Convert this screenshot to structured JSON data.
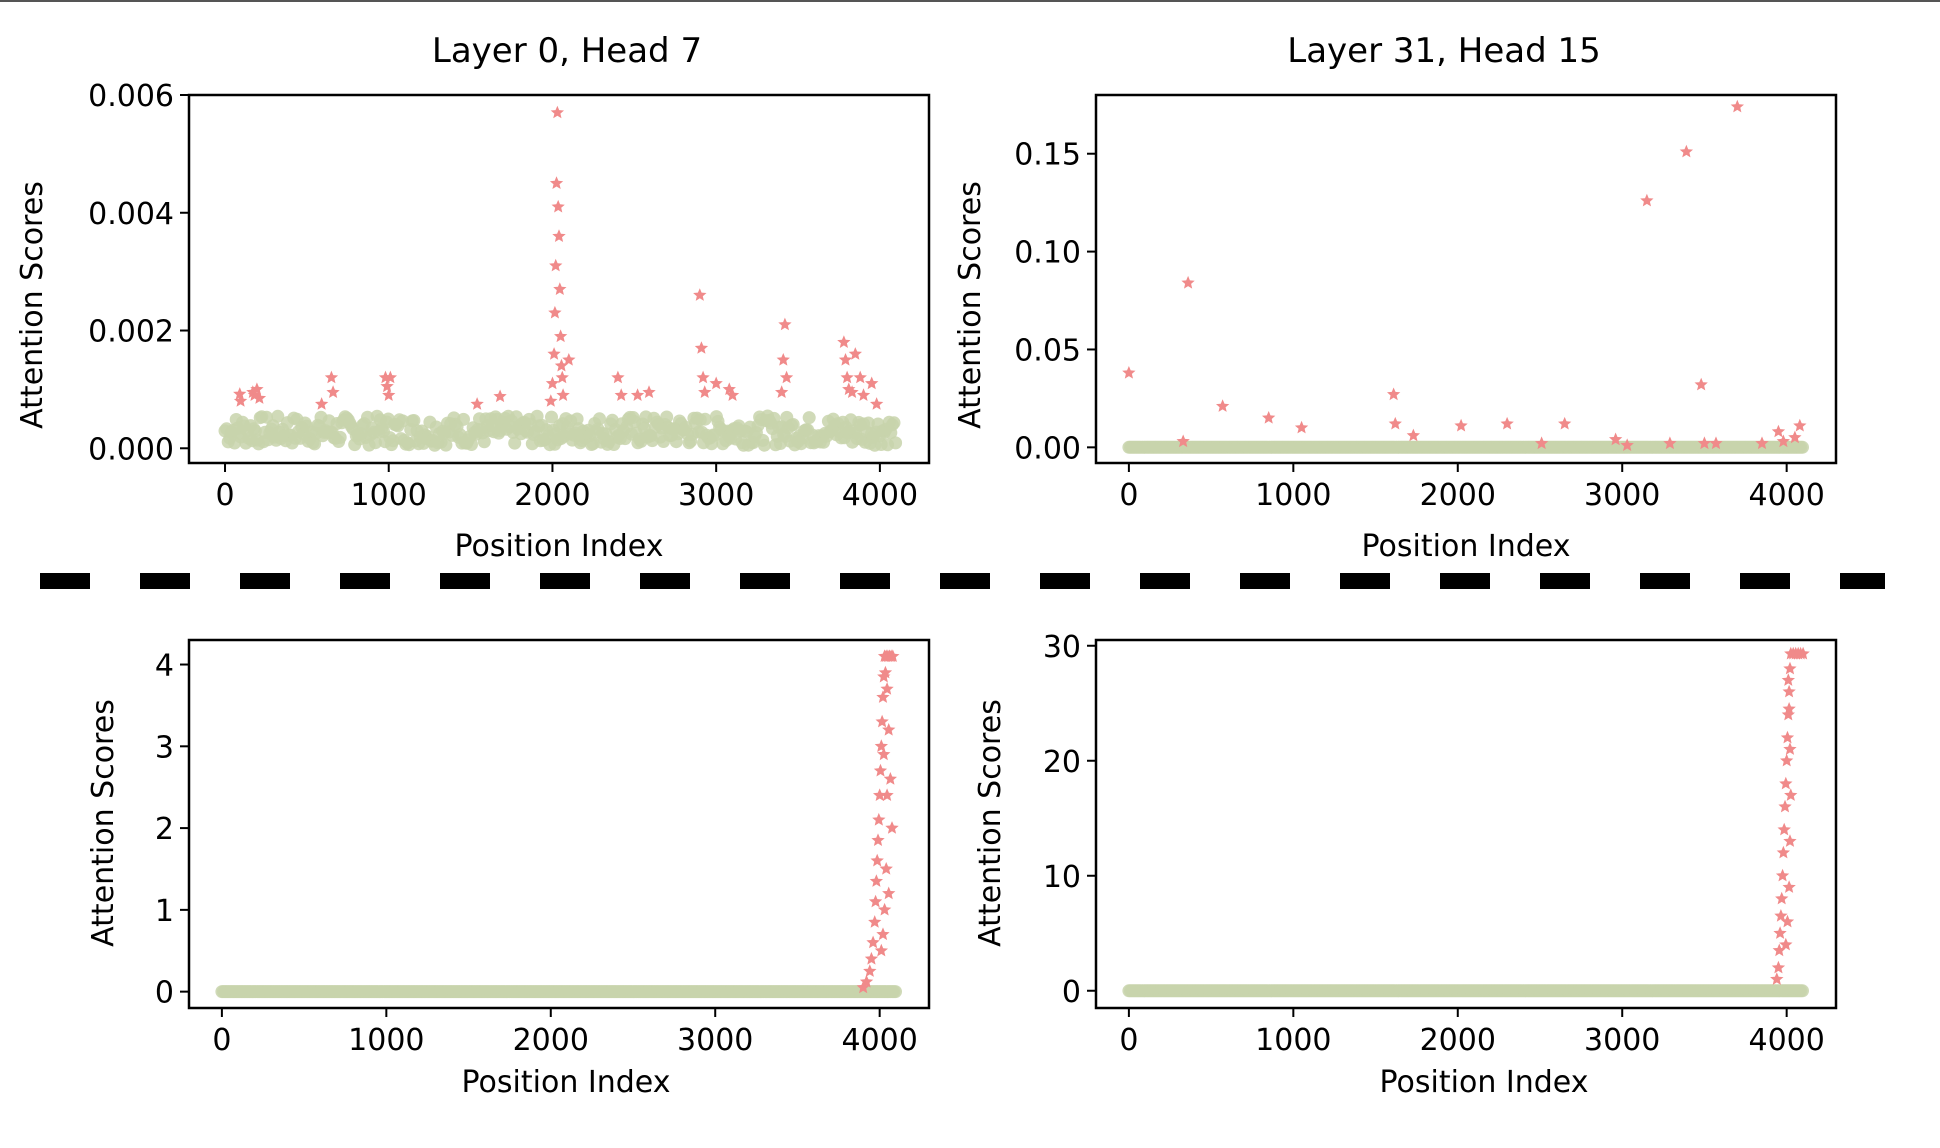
{
  "colors": {
    "normal": "#c8d3ab",
    "highlight": "#f08a8a",
    "axis": "#000000",
    "divider": "#000000"
  },
  "chart_data": [
    {
      "id": "p1",
      "type": "scatter",
      "title": "Layer 0, Head 7",
      "xlabel": "Position Index",
      "ylabel": "Attention Scores",
      "xlim": [
        -220,
        4300
      ],
      "ylim": [
        -0.00025,
        0.006
      ],
      "xticks": [
        0,
        1000,
        2000,
        3000,
        4000
      ],
      "xtick_labels": [
        "0",
        "1000",
        "2000",
        "3000",
        "4000"
      ],
      "yticks": [
        0,
        0.002,
        0.004,
        0.006
      ],
      "ytick_labels": [
        "0.000",
        "0.002",
        "0.004",
        "0.006"
      ],
      "baseline_low": 5e-05,
      "baseline_high": 0.00055,
      "highlight_points": [
        [
          90,
          0.00092
        ],
        [
          95,
          0.0008
        ],
        [
          170,
          0.00095
        ],
        [
          180,
          0.0009
        ],
        [
          195,
          0.001
        ],
        [
          210,
          0.00085
        ],
        [
          590,
          0.00075
        ],
        [
          650,
          0.0012
        ],
        [
          660,
          0.00095
        ],
        [
          980,
          0.0012
        ],
        [
          990,
          0.00105
        ],
        [
          1000,
          0.0009
        ],
        [
          1010,
          0.0012
        ],
        [
          1540,
          0.00075
        ],
        [
          1680,
          0.00088
        ],
        [
          1990,
          0.0008
        ],
        [
          2000,
          0.0011
        ],
        [
          2010,
          0.0016
        ],
        [
          2015,
          0.0023
        ],
        [
          2020,
          0.0031
        ],
        [
          2025,
          0.0045
        ],
        [
          2030,
          0.0057
        ],
        [
          2035,
          0.0041
        ],
        [
          2040,
          0.0036
        ],
        [
          2045,
          0.0027
        ],
        [
          2050,
          0.0019
        ],
        [
          2055,
          0.0014
        ],
        [
          2060,
          0.0012
        ],
        [
          2065,
          0.0009
        ],
        [
          2100,
          0.0015
        ],
        [
          2400,
          0.0012
        ],
        [
          2420,
          0.0009
        ],
        [
          2520,
          0.0009
        ],
        [
          2590,
          0.00095
        ],
        [
          2900,
          0.0026
        ],
        [
          2910,
          0.0017
        ],
        [
          2920,
          0.0012
        ],
        [
          2930,
          0.00095
        ],
        [
          3000,
          0.0011
        ],
        [
          3080,
          0.001
        ],
        [
          3100,
          0.0009
        ],
        [
          3400,
          0.00095
        ],
        [
          3410,
          0.0015
        ],
        [
          3420,
          0.0021
        ],
        [
          3430,
          0.0012
        ],
        [
          3780,
          0.0018
        ],
        [
          3790,
          0.0015
        ],
        [
          3800,
          0.0012
        ],
        [
          3810,
          0.001
        ],
        [
          3830,
          0.00095
        ],
        [
          3850,
          0.0016
        ],
        [
          3880,
          0.0012
        ],
        [
          3900,
          0.0009
        ],
        [
          3950,
          0.0011
        ],
        [
          3980,
          0.00075
        ]
      ]
    },
    {
      "id": "p2",
      "type": "scatter",
      "title": "Layer 31, Head 15",
      "xlabel": "Position Index",
      "ylabel": "Attention Scores",
      "xlim": [
        -200,
        4300
      ],
      "ylim": [
        -0.008,
        0.18
      ],
      "xticks": [
        0,
        1000,
        2000,
        3000,
        4000
      ],
      "xtick_labels": [
        "0",
        "1000",
        "2000",
        "3000",
        "4000"
      ],
      "yticks": [
        0,
        0.05,
        0.1,
        0.15
      ],
      "ytick_labels": [
        "0.00",
        "0.05",
        "0.10",
        "0.15"
      ],
      "baseline_low": 0,
      "baseline_high": 0,
      "highlight_points": [
        [
          0,
          0.038
        ],
        [
          330,
          0.003
        ],
        [
          360,
          0.084
        ],
        [
          570,
          0.021
        ],
        [
          850,
          0.015
        ],
        [
          1050,
          0.01
        ],
        [
          1610,
          0.027
        ],
        [
          1620,
          0.012
        ],
        [
          1730,
          0.006
        ],
        [
          2020,
          0.011
        ],
        [
          2300,
          0.012
        ],
        [
          2510,
          0.002
        ],
        [
          2650,
          0.012
        ],
        [
          2960,
          0.004
        ],
        [
          3030,
          0.001
        ],
        [
          3150,
          0.126
        ],
        [
          3290,
          0.002
        ],
        [
          3390,
          0.151
        ],
        [
          3480,
          0.032
        ],
        [
          3500,
          0.002
        ],
        [
          3570,
          0.002
        ],
        [
          3700,
          0.174
        ],
        [
          3850,
          0.002
        ],
        [
          3950,
          0.008
        ],
        [
          3980,
          0.003
        ],
        [
          4050,
          0.005
        ],
        [
          4080,
          0.011
        ]
      ]
    },
    {
      "id": "p3",
      "type": "scatter",
      "xlabel": "Position Index",
      "ylabel": "Attention Scores",
      "xlim": [
        -200,
        4300
      ],
      "ylim": [
        -0.2,
        4.3
      ],
      "xticks": [
        0,
        1000,
        2000,
        3000,
        4000
      ],
      "xtick_labels": [
        "0",
        "1000",
        "2000",
        "3000",
        "4000"
      ],
      "yticks": [
        0,
        1,
        2,
        3,
        4
      ],
      "ytick_labels": [
        "0",
        "1",
        "2",
        "3",
        "4"
      ],
      "baseline_low": 0,
      "baseline_high": 0,
      "highlight_points": [
        [
          3900,
          0.05
        ],
        [
          3920,
          0.12
        ],
        [
          3940,
          0.25
        ],
        [
          3950,
          0.4
        ],
        [
          3960,
          0.6
        ],
        [
          3970,
          0.85
        ],
        [
          3975,
          1.1
        ],
        [
          3980,
          1.35
        ],
        [
          3985,
          1.6
        ],
        [
          3990,
          1.85
        ],
        [
          3995,
          2.1
        ],
        [
          4000,
          2.4
        ],
        [
          4005,
          2.7
        ],
        [
          4010,
          3.0
        ],
        [
          4015,
          3.3
        ],
        [
          4020,
          3.6
        ],
        [
          4025,
          3.85
        ],
        [
          4030,
          4.1
        ],
        [
          4040,
          4.1
        ],
        [
          4050,
          4.1
        ],
        [
          4060,
          4.1
        ],
        [
          4070,
          4.1
        ],
        [
          4080,
          4.1
        ],
        [
          4035,
          3.9
        ],
        [
          4045,
          3.7
        ],
        [
          4055,
          3.2
        ],
        [
          4065,
          2.6
        ],
        [
          4075,
          2.0
        ],
        [
          4040,
          1.5
        ],
        [
          4030,
          1.0
        ],
        [
          4020,
          0.7
        ],
        [
          4010,
          0.5
        ],
        [
          4045,
          2.4
        ],
        [
          4055,
          1.2
        ],
        [
          4025,
          2.9
        ]
      ]
    },
    {
      "id": "p4",
      "type": "scatter",
      "xlabel": "Position Index",
      "ylabel": "Attention Scores",
      "xlim": [
        -200,
        4300
      ],
      "ylim": [
        -1.5,
        30.5
      ],
      "xticks": [
        0,
        1000,
        2000,
        3000,
        4000
      ],
      "xtick_labels": [
        "0",
        "1000",
        "2000",
        "3000",
        "4000"
      ],
      "yticks": [
        0,
        10,
        20,
        30
      ],
      "ytick_labels": [
        "0",
        "10",
        "20",
        "30"
      ],
      "baseline_low": 0,
      "baseline_high": 0,
      "highlight_points": [
        [
          3940,
          1.0
        ],
        [
          3950,
          2.0
        ],
        [
          3955,
          3.5
        ],
        [
          3960,
          5.0
        ],
        [
          3965,
          6.5
        ],
        [
          3970,
          8.0
        ],
        [
          3975,
          10.0
        ],
        [
          3980,
          12.0
        ],
        [
          3985,
          14.0
        ],
        [
          3990,
          16.0
        ],
        [
          3995,
          18.0
        ],
        [
          4000,
          20.0
        ],
        [
          4005,
          22.0
        ],
        [
          4010,
          24.0
        ],
        [
          4015,
          26.0
        ],
        [
          4020,
          28.0
        ],
        [
          4025,
          29.3
        ],
        [
          4040,
          29.3
        ],
        [
          4055,
          29.3
        ],
        [
          4070,
          29.3
        ],
        [
          4085,
          29.3
        ],
        [
          4100,
          29.3
        ],
        [
          4010,
          27.0
        ],
        [
          4015,
          24.5
        ],
        [
          4020,
          21.0
        ],
        [
          4025,
          17.0
        ],
        [
          4020,
          13.0
        ],
        [
          4015,
          9.0
        ],
        [
          4005,
          6.0
        ],
        [
          3995,
          4.0
        ]
      ]
    }
  ]
}
